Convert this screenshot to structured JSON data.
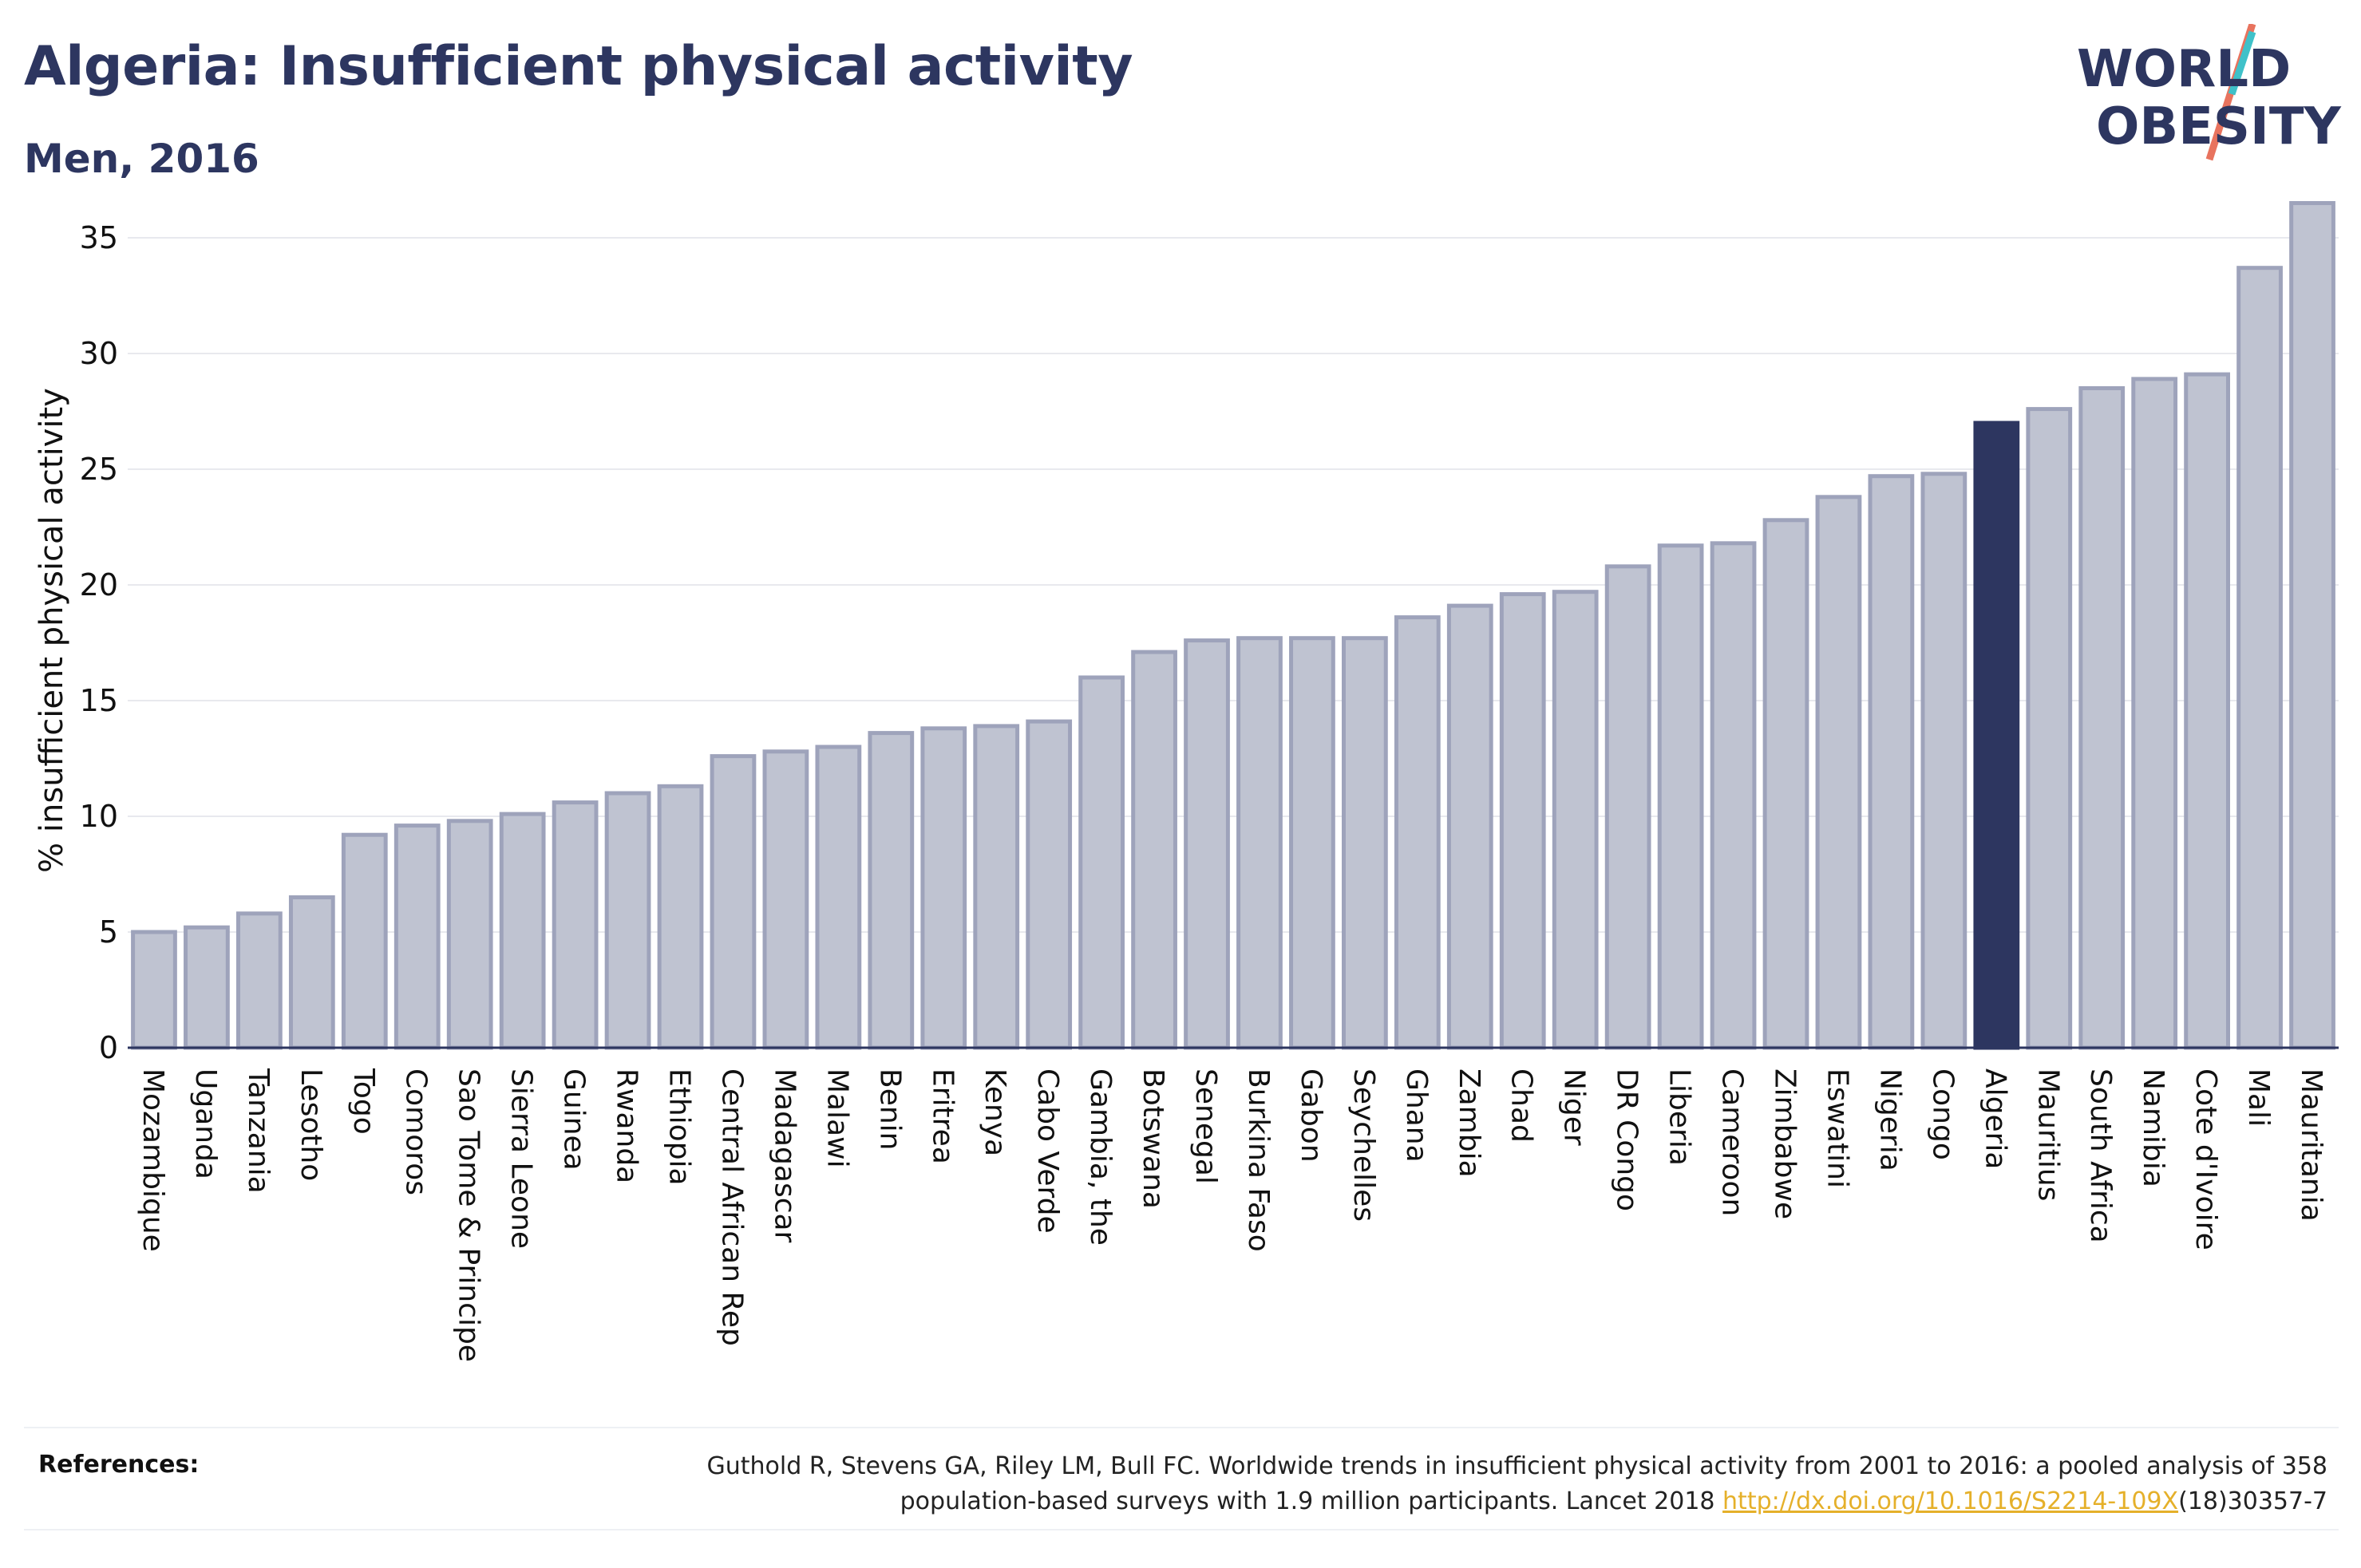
{
  "header": {
    "title": "Algeria: Insufficient physical activity",
    "subtitle": "Men, 2016"
  },
  "logo": {
    "line1": "WORLD",
    "line2": "OBESITY",
    "colors": {
      "text": "#2d3660",
      "slash_red": "#e8735e",
      "slash_teal": "#3fc1c9"
    }
  },
  "colors": {
    "bar": "#bfc3d1",
    "bar_stroke": "#9ea3bb",
    "highlight": "#2d3660",
    "grid": "#e8e9ee",
    "axis": "#2d3660"
  },
  "chart_data": {
    "type": "bar",
    "title": "Algeria: Insufficient physical activity",
    "subtitle": "Men, 2016",
    "ylabel": "% insufficient physical activity",
    "xlabel": "",
    "ylim": [
      0,
      37
    ],
    "yticks": [
      0,
      5,
      10,
      15,
      20,
      25,
      30,
      35
    ],
    "grid": true,
    "highlight": "Algeria",
    "categories": [
      "Mozambique",
      "Uganda",
      "Tanzania",
      "Lesotho",
      "Togo",
      "Comoros",
      "Sao Tome & Principe",
      "Sierra Leone",
      "Guinea",
      "Rwanda",
      "Ethiopia",
      "Central African Rep",
      "Madagascar",
      "Malawi",
      "Benin",
      "Eritrea",
      "Kenya",
      "Cabo Verde",
      "Gambia, the",
      "Botswana",
      "Senegal",
      "Burkina Faso",
      "Gabon",
      "Seychelles",
      "Ghana",
      "Zambia",
      "Chad",
      "Niger",
      "DR Congo",
      "Liberia",
      "Cameroon",
      "Zimbabwe",
      "Eswatini",
      "Nigeria",
      "Congo",
      "Algeria",
      "Mauritius",
      "South Africa",
      "Namibia",
      "Cote d'Ivoire",
      "Mali",
      "Mauritania"
    ],
    "values": [
      5.0,
      5.2,
      5.8,
      6.5,
      9.2,
      9.6,
      9.8,
      10.1,
      10.6,
      11.0,
      11.3,
      12.6,
      12.8,
      13.0,
      13.6,
      13.8,
      13.9,
      14.1,
      16.0,
      17.1,
      17.6,
      17.7,
      17.7,
      17.7,
      18.6,
      19.1,
      19.6,
      19.7,
      20.8,
      21.7,
      21.8,
      22.8,
      23.8,
      24.7,
      24.8,
      27.0,
      27.6,
      28.5,
      28.9,
      29.1,
      33.7,
      36.5
    ]
  },
  "footer": {
    "references_label": "References:",
    "reference_line1": "Guthold R, Stevens GA, Riley LM, Bull FC. Worldwide trends in insufficient physical activity from 2001 to 2016: a pooled analysis of 358",
    "reference_line2_pre": "population-based surveys with 1.9 million participants. Lancet 2018 ",
    "reference_link": "http://dx.doi.org/10.1016/S2214-109X",
    "reference_line2_post": "(18)30357-7"
  }
}
